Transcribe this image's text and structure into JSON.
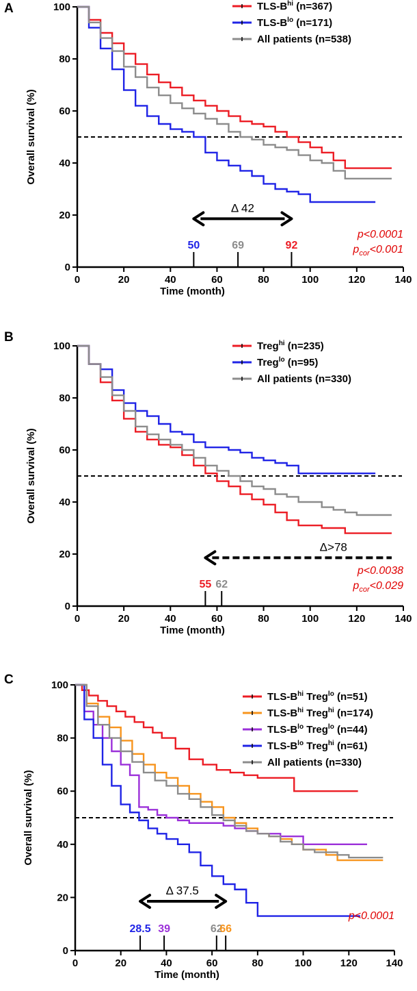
{
  "colors": {
    "red": "#ec1c24",
    "blue": "#1f23e6",
    "gray": "#8c8c8c",
    "orange": "#f7941d",
    "purple": "#9b30d9",
    "pval": "#e00000"
  },
  "chart_data": [
    {
      "panel": "A",
      "type": "line",
      "subtype": "kaplan-meier",
      "xlabel": "Time (month)",
      "ylabel": "Overall survival (%)",
      "xlim": [
        0,
        140
      ],
      "ylim": [
        0,
        100
      ],
      "xticks": [
        0,
        20,
        40,
        60,
        80,
        100,
        120,
        140
      ],
      "yticks": [
        0,
        20,
        40,
        60,
        80,
        100
      ],
      "median_line": 50,
      "series": [
        {
          "key": "red",
          "name": "TLS-B",
          "sup": "hi",
          "n": "(n=367)",
          "x": [
            0,
            5,
            10,
            15,
            20,
            25,
            30,
            35,
            40,
            45,
            50,
            55,
            60,
            65,
            70,
            75,
            80,
            85,
            90,
            95,
            100,
            105,
            110,
            115,
            120,
            125,
            130,
            135
          ],
          "y": [
            100,
            95,
            90,
            86,
            82,
            78,
            74,
            71,
            69,
            66,
            64,
            62,
            60,
            58,
            56,
            55,
            54,
            52,
            50,
            48,
            46,
            44,
            41,
            38,
            38,
            38,
            38,
            38
          ]
        },
        {
          "key": "blue",
          "name": "TLS-B",
          "sup": "lo",
          "n": "(n=171)",
          "x": [
            0,
            5,
            10,
            15,
            20,
            25,
            30,
            35,
            40,
            45,
            50,
            55,
            60,
            65,
            70,
            75,
            80,
            85,
            90,
            95,
            100,
            105,
            110,
            115,
            120,
            125,
            128
          ],
          "y": [
            100,
            92,
            84,
            76,
            68,
            62,
            58,
            55,
            53,
            52,
            50,
            44,
            41,
            39,
            37,
            35,
            32,
            30,
            29,
            28,
            25,
            25,
            25,
            25,
            25,
            25,
            25
          ]
        },
        {
          "key": "gray",
          "name": "All patients",
          "sup": "",
          "n": "(n=538)",
          "x": [
            0,
            5,
            10,
            15,
            20,
            25,
            30,
            35,
            40,
            45,
            50,
            55,
            60,
            65,
            70,
            75,
            80,
            85,
            90,
            95,
            100,
            105,
            110,
            115,
            120,
            125,
            130,
            135
          ],
          "y": [
            100,
            94,
            88,
            83,
            77,
            73,
            69,
            66,
            63,
            61,
            59,
            57,
            55,
            52,
            50,
            49,
            47,
            46,
            45,
            43,
            41,
            40,
            37,
            34,
            34,
            34,
            34,
            34
          ]
        }
      ],
      "medians": [
        {
          "key": "blue",
          "x": 50,
          "label": "50"
        },
        {
          "key": "gray",
          "x": 69,
          "label": "69"
        },
        {
          "key": "red",
          "x": 92,
          "label": "92"
        }
      ],
      "delta": {
        "label": "Δ 42",
        "from": 50,
        "to": 92,
        "y_level": 17,
        "style": "double",
        "label_x": 71
      },
      "pvalues": [
        {
          "p": "p",
          "sub": "",
          "rest": "<0.0001"
        },
        {
          "p": "p",
          "sub": "cor",
          "rest": "<0.001"
        }
      ]
    },
    {
      "panel": "B",
      "type": "line",
      "subtype": "kaplan-meier",
      "xlabel": "Time (month)",
      "ylabel": "Overall survival (%)",
      "xlim": [
        0,
        140
      ],
      "ylim": [
        0,
        100
      ],
      "xticks": [
        0,
        20,
        40,
        60,
        80,
        100,
        120,
        140
      ],
      "yticks": [
        0,
        20,
        40,
        60,
        80,
        100
      ],
      "median_line": 50,
      "series": [
        {
          "key": "red",
          "name": "Treg",
          "sup": "hi",
          "n": "(n=235)",
          "x": [
            0,
            5,
            10,
            15,
            20,
            25,
            30,
            35,
            40,
            45,
            50,
            55,
            60,
            65,
            70,
            75,
            80,
            85,
            90,
            95,
            100,
            105,
            110,
            115,
            120,
            125,
            130,
            135
          ],
          "y": [
            100,
            93,
            86,
            79,
            72,
            67,
            64,
            62,
            61,
            58,
            54,
            51,
            48,
            46,
            43,
            41,
            39,
            36,
            33,
            31,
            31,
            30,
            30,
            28,
            28,
            28,
            28,
            28
          ]
        },
        {
          "key": "blue",
          "name": "Treg",
          "sup": "lo",
          "n": "(n=95)",
          "x": [
            0,
            5,
            10,
            15,
            20,
            25,
            30,
            35,
            40,
            45,
            50,
            55,
            60,
            65,
            70,
            75,
            80,
            85,
            90,
            95,
            100,
            105,
            110,
            115,
            120,
            125,
            128
          ],
          "y": [
            100,
            93,
            91,
            83,
            78,
            75,
            73,
            70,
            67,
            66,
            63,
            61,
            61,
            60,
            59,
            57,
            56,
            55,
            54,
            51,
            51,
            51,
            51,
            51,
            51,
            51,
            51
          ]
        },
        {
          "key": "gray",
          "name": "All patients",
          "sup": "",
          "n": "(n=330)",
          "x": [
            0,
            5,
            10,
            15,
            20,
            25,
            30,
            35,
            40,
            45,
            50,
            55,
            60,
            65,
            70,
            75,
            80,
            85,
            90,
            95,
            100,
            105,
            110,
            115,
            120,
            125,
            130,
            135
          ],
          "y": [
            100,
            93,
            88,
            81,
            75,
            69,
            66,
            64,
            62,
            60,
            57,
            54,
            52,
            50,
            48,
            46,
            45,
            43,
            42,
            40,
            40,
            38,
            37,
            36,
            35,
            35,
            35,
            35
          ]
        }
      ],
      "medians": [
        {
          "key": "red",
          "x": 55,
          "label": "55"
        },
        {
          "key": "gray",
          "x": 62,
          "label": "62"
        }
      ],
      "delta": {
        "label": "Δ>78",
        "from": 55,
        "to": 135,
        "y_level": 17,
        "style": "left-dashed",
        "label_x": 110
      },
      "pvalues": [
        {
          "p": "p",
          "sub": "",
          "rest": "<0.0038"
        },
        {
          "p": "p",
          "sub": "cor",
          "rest": "<0.029"
        }
      ]
    },
    {
      "panel": "C",
      "type": "line",
      "subtype": "kaplan-meier",
      "xlabel": "Time (month)",
      "ylabel": "Overall survival (%)",
      "xlim": [
        0,
        140
      ],
      "ylim": [
        0,
        100
      ],
      "xticks": [
        0,
        20,
        40,
        60,
        80,
        100,
        120,
        140
      ],
      "yticks": [
        0,
        20,
        40,
        60,
        80,
        100
      ],
      "median_line": 50,
      "series": [
        {
          "key": "red",
          "name": "TLS-B",
          "sup": "hi",
          "name2": " Treg",
          "sup2": "lo",
          "n": "(n=51)",
          "x": [
            0,
            3,
            6,
            10,
            14,
            18,
            22,
            26,
            30,
            34,
            38,
            44,
            50,
            56,
            62,
            68,
            74,
            80,
            88,
            96,
            104,
            112,
            120,
            124
          ],
          "y": [
            100,
            98,
            96,
            94,
            92,
            90,
            88,
            86,
            84,
            82,
            80,
            76,
            72,
            70,
            68,
            67,
            66,
            65,
            65,
            60,
            60,
            60,
            60,
            60
          ]
        },
        {
          "key": "orange",
          "name": "TLS-B",
          "sup": "hi",
          "name2": " Treg",
          "sup2": "hi",
          "n": "(n=174)",
          "x": [
            0,
            5,
            10,
            15,
            20,
            25,
            30,
            35,
            40,
            45,
            50,
            55,
            60,
            65,
            70,
            75,
            80,
            85,
            90,
            95,
            100,
            105,
            110,
            115,
            120,
            125,
            130,
            135
          ],
          "y": [
            100,
            93,
            88,
            84,
            79,
            74,
            70,
            67,
            65,
            62,
            59,
            56,
            54,
            50,
            48,
            46,
            44,
            43,
            42,
            40,
            38,
            38,
            36,
            34,
            34,
            34,
            34,
            34
          ]
        },
        {
          "key": "purple",
          "name": "TLS-B",
          "sup": "lo",
          "name2": " Treg",
          "sup2": "lo",
          "n": "(n=44)",
          "x": [
            0,
            4,
            8,
            12,
            16,
            20,
            24,
            28,
            32,
            36,
            40,
            45,
            50,
            55,
            60,
            65,
            70,
            75,
            80,
            85,
            90,
            100,
            110,
            120,
            128
          ],
          "y": [
            100,
            90,
            85,
            80,
            75,
            70,
            66,
            54,
            53,
            51,
            50,
            49,
            48,
            48,
            48,
            47,
            46,
            45,
            44,
            44,
            43,
            40,
            40,
            40,
            40
          ]
        },
        {
          "key": "blue",
          "name": "TLS-B",
          "sup": "lo",
          "name2": " Treg",
          "sup2": "hi",
          "n": "(n=61)",
          "x": [
            0,
            4,
            8,
            12,
            16,
            20,
            24,
            28,
            32,
            36,
            40,
            45,
            50,
            55,
            60,
            65,
            70,
            75,
            80,
            85,
            90,
            100,
            110,
            120,
            125
          ],
          "y": [
            100,
            87,
            80,
            70,
            62,
            55,
            52,
            49,
            46,
            44,
            42,
            40,
            37,
            32,
            28,
            25,
            23,
            18,
            13,
            13,
            13,
            13,
            13,
            13,
            13
          ]
        },
        {
          "key": "gray",
          "name": "All patients",
          "sup": "",
          "name2": "",
          "sup2": "",
          "n": "(n=330)",
          "x": [
            0,
            5,
            10,
            15,
            20,
            25,
            30,
            35,
            40,
            45,
            50,
            55,
            60,
            65,
            70,
            75,
            80,
            85,
            90,
            95,
            100,
            105,
            110,
            115,
            120,
            125,
            130,
            135
          ],
          "y": [
            100,
            92,
            85,
            80,
            75,
            71,
            67,
            64,
            62,
            59,
            57,
            54,
            51,
            49,
            47,
            45,
            44,
            43,
            41,
            40,
            38,
            37,
            37,
            36,
            35,
            35,
            35,
            35
          ]
        }
      ],
      "medians": [
        {
          "key": "blue",
          "x": 28.5,
          "label": "28.5"
        },
        {
          "key": "purple",
          "x": 39,
          "label": "39"
        },
        {
          "key": "gray",
          "x": 62,
          "label": "62"
        },
        {
          "key": "orange",
          "x": 66,
          "label": "66"
        }
      ],
      "delta": {
        "label": "Δ 37.5",
        "from": 28.5,
        "to": 66,
        "y_level": 17,
        "style": "double",
        "label_x": 47
      },
      "pvalues": [
        {
          "p": "p",
          "sub": "",
          "rest": "<0.0001"
        }
      ]
    }
  ]
}
